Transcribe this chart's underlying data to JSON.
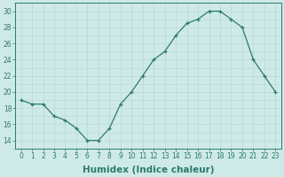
{
  "x": [
    0,
    1,
    2,
    3,
    4,
    5,
    6,
    7,
    8,
    9,
    10,
    11,
    12,
    13,
    14,
    15,
    16,
    17,
    18,
    19,
    20,
    21,
    22,
    23
  ],
  "y": [
    19,
    18.5,
    18.5,
    17,
    16.5,
    15.5,
    14,
    14,
    15.5,
    18.5,
    20,
    22,
    24,
    25,
    27,
    28.5,
    29,
    30,
    30,
    29,
    28,
    24,
    22,
    20
  ],
  "line_color": "#2d7a6e",
  "marker": "+",
  "marker_size": 3,
  "background_color": "#ceeae7",
  "grid_color": "#b8d8d4",
  "xlabel": "Humidex (Indice chaleur)",
  "ylabel": "",
  "title": "",
  "ylim": [
    13,
    31
  ],
  "xlim": [
    -0.5,
    23.5
  ],
  "yticks": [
    14,
    16,
    18,
    20,
    22,
    24,
    26,
    28,
    30
  ],
  "xticks": [
    0,
    1,
    2,
    3,
    4,
    5,
    6,
    7,
    8,
    9,
    10,
    11,
    12,
    13,
    14,
    15,
    16,
    17,
    18,
    19,
    20,
    21,
    22,
    23
  ],
  "xtick_labels": [
    "0",
    "1",
    "2",
    "3",
    "4",
    "5",
    "6",
    "7",
    "8",
    "9",
    "10",
    "11",
    "12",
    "13",
    "14",
    "15",
    "16",
    "17",
    "18",
    "19",
    "20",
    "21",
    "22",
    "23"
  ],
  "font_color": "#2d7a6e",
  "tick_fontsize": 5.5,
  "label_fontsize": 7.5
}
